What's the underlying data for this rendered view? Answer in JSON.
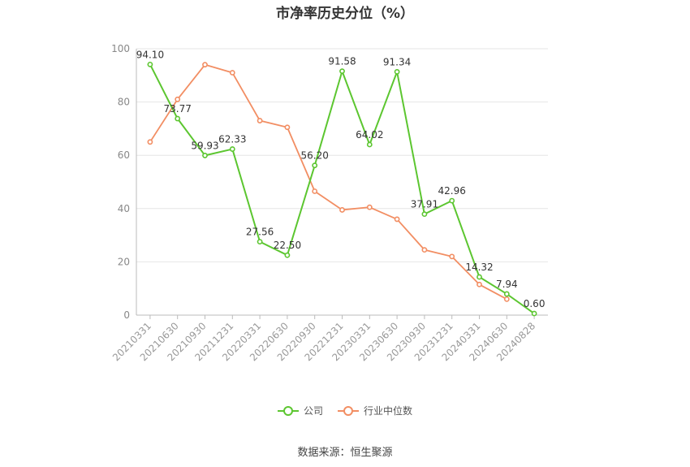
{
  "chart_data": {
    "type": "line",
    "title": "市净率历史分位（%）",
    "categories": [
      "20210331",
      "20210630",
      "20210930",
      "20211231",
      "20220331",
      "20220630",
      "20220930",
      "20221231",
      "20230331",
      "20230630",
      "20230930",
      "20231231",
      "20240331",
      "20240630",
      "20240828"
    ],
    "series": [
      {
        "name": "公司",
        "color": "#5cc630",
        "values": [
          94.1,
          73.77,
          59.93,
          62.33,
          27.56,
          22.5,
          56.2,
          91.58,
          64.02,
          91.34,
          37.91,
          42.96,
          14.32,
          7.94,
          0.6
        ],
        "labels": [
          "94.10",
          "73.77",
          "59.93",
          "62.33",
          "27.56",
          "22.50",
          "56.20",
          "91.58",
          "64.02",
          "91.34",
          "37.91",
          "42.96",
          "14.32",
          "7.94",
          "0.60"
        ]
      },
      {
        "name": "行业中位数",
        "color": "#f28e63",
        "values": [
          65,
          81,
          94,
          91,
          73,
          70.5,
          46.5,
          39.5,
          40.5,
          36,
          24.5,
          22,
          11.5,
          6,
          null
        ]
      }
    ],
    "ylim": [
      0,
      100
    ],
    "yticks": [
      0,
      20,
      40,
      60,
      80,
      100
    ],
    "grid": true,
    "legend_position": "bottom"
  },
  "source": "数据来源：恒生聚源"
}
